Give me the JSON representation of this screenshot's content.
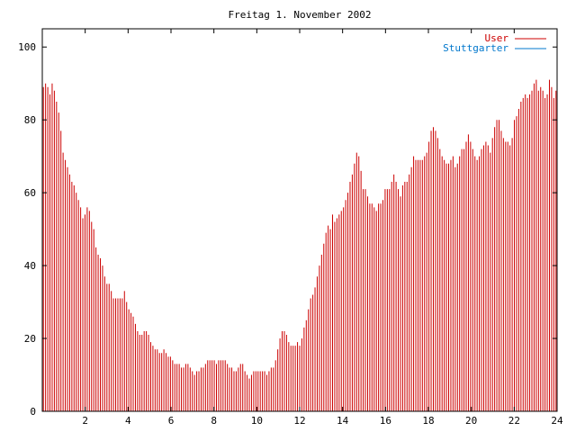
{
  "chart_data": {
    "type": "bar",
    "title": "Freitag 1. November 2002",
    "xlabel": "",
    "ylabel": "",
    "xlim": [
      0,
      24
    ],
    "ylim": [
      0,
      105
    ],
    "xticks": [
      2,
      4,
      6,
      8,
      10,
      12,
      14,
      16,
      18,
      20,
      22,
      24
    ],
    "yticks": [
      0,
      20,
      40,
      60,
      80,
      100
    ],
    "legend_position": "top-right",
    "colors": {
      "user": "#cc0000",
      "stuttgarter": "#0077cc",
      "axis": "#000000"
    },
    "series": [
      {
        "name": "User",
        "color": "#cc0000",
        "values": [
          89,
          90,
          89,
          87,
          90,
          88,
          85,
          82,
          77,
          71,
          69,
          67,
          65,
          63,
          62,
          60,
          58,
          56,
          53,
          54,
          56,
          55,
          52,
          50,
          45,
          43,
          42,
          40,
          37,
          35,
          35,
          33,
          31,
          31,
          31,
          31,
          31,
          33,
          30,
          28,
          27,
          26,
          24,
          22,
          21,
          21,
          22,
          22,
          21,
          19,
          18,
          17,
          17,
          16,
          16,
          17,
          16,
          15,
          15,
          14,
          13,
          13,
          13,
          12,
          12,
          13,
          13,
          12,
          11,
          10,
          11,
          11,
          12,
          12,
          13,
          14,
          14,
          14,
          14,
          13,
          14,
          14,
          14,
          14,
          13,
          12,
          12,
          11,
          11,
          12,
          13,
          13,
          11,
          10,
          9,
          10,
          11,
          11,
          11,
          11,
          11,
          11,
          10,
          11,
          12,
          12,
          14,
          17,
          20,
          22,
          22,
          21,
          19,
          18,
          18,
          18,
          19,
          18,
          20,
          23,
          25,
          28,
          31,
          32,
          34,
          37,
          40,
          43,
          46,
          49,
          51,
          50,
          54,
          52,
          53,
          54,
          55,
          56,
          58,
          60,
          63,
          65,
          68,
          71,
          70,
          66,
          61,
          61,
          59,
          57,
          57,
          56,
          55,
          57,
          57,
          58,
          61,
          61,
          61,
          63,
          65,
          63,
          61,
          59,
          62,
          63,
          63,
          65,
          67,
          70,
          69,
          69,
          69,
          69,
          70,
          71,
          74,
          77,
          78,
          77,
          75,
          72,
          70,
          69,
          68,
          68,
          69,
          70,
          67,
          68,
          70,
          72,
          72,
          74,
          76,
          74,
          72,
          70,
          69,
          70,
          72,
          73,
          74,
          73,
          71,
          75,
          78,
          80,
          80,
          77,
          75,
          74,
          74,
          73,
          75,
          80,
          81,
          83,
          85,
          86,
          87,
          86,
          87,
          88,
          90,
          91,
          88,
          89,
          88,
          86,
          87,
          91,
          89,
          86,
          88
        ]
      },
      {
        "name": "Stuttgarter",
        "color": "#0077cc",
        "values": []
      }
    ]
  }
}
